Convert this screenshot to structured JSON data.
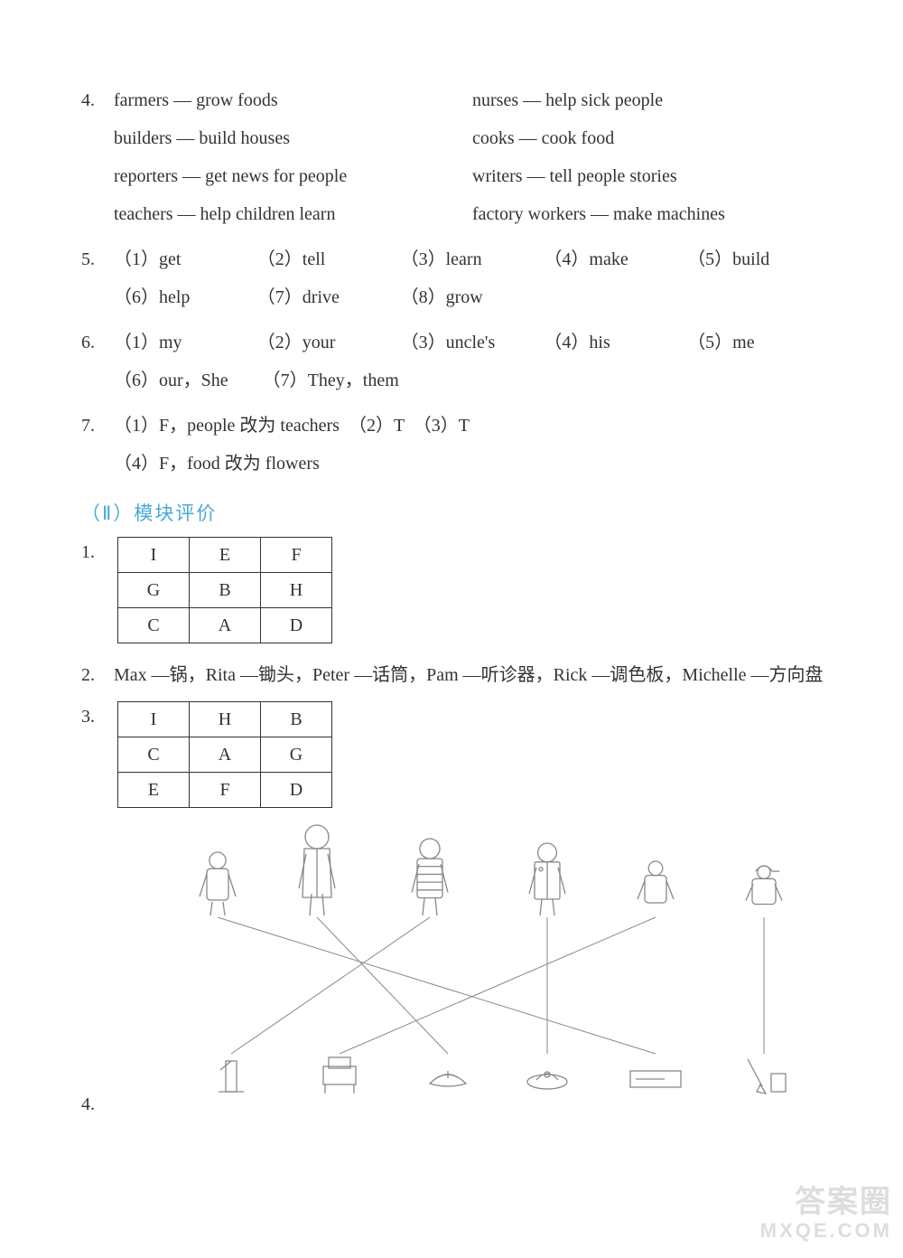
{
  "q4": {
    "num": "4.",
    "pairs_left": [
      "farmers — grow foods",
      "builders — build houses",
      "reporters — get news for people",
      "teachers — help children learn"
    ],
    "pairs_right": [
      "nurses — help sick people",
      "cooks — cook food",
      "writers — tell people stories",
      "factory workers — make machines"
    ]
  },
  "q5": {
    "num": "5.",
    "items": [
      "（1）get",
      "（2）tell",
      "（3）learn",
      "（4）make",
      "（5）build",
      "（6）help",
      "（7）drive",
      "（8）grow"
    ]
  },
  "q6": {
    "num": "6.",
    "items": [
      "（1）my",
      "（2）your",
      "（3）uncle's",
      "（4）his",
      "（5）me",
      "（6）our，She",
      "（7）They，them"
    ]
  },
  "q7": {
    "num": "7.",
    "line1": "（1）F，people 改为 teachers　（2）T　（3）T",
    "line2": "（4）F，food 改为 flowers"
  },
  "section2_title": "（Ⅱ）模块评价",
  "t1": {
    "num": "1.",
    "rows": [
      [
        "I",
        "E",
        "F"
      ],
      [
        "G",
        "B",
        "H"
      ],
      [
        "C",
        "A",
        "D"
      ]
    ]
  },
  "q2b": {
    "num": "2.",
    "text": "Max —锅，Rita —锄头，Peter —话筒，Pam —听诊器，Rick —调色板，Michelle —方向盘"
  },
  "t3": {
    "num": "3.",
    "rows": [
      [
        "I",
        "H",
        "B"
      ],
      [
        "C",
        "A",
        "G"
      ],
      [
        "E",
        "F",
        "D"
      ]
    ]
  },
  "q4b": {
    "num": "4."
  },
  "diagram": {
    "people_x": [
      115,
      225,
      350,
      480,
      600,
      720
    ],
    "people_labels": [
      "child",
      "doctor",
      "stripes",
      "uniform",
      "boy",
      "cap"
    ],
    "object_x": [
      130,
      250,
      370,
      480,
      600,
      720
    ],
    "object_labels": [
      "tower",
      "desk",
      "hat",
      "cap2",
      "board",
      "brush"
    ],
    "edges": [
      [
        0,
        4
      ],
      [
        1,
        2
      ],
      [
        2,
        0
      ],
      [
        3,
        3
      ],
      [
        4,
        1
      ],
      [
        5,
        5
      ]
    ],
    "stroke": "#888888"
  },
  "watermark": {
    "line1": "答案圈",
    "line2": "MXQE.COM"
  }
}
